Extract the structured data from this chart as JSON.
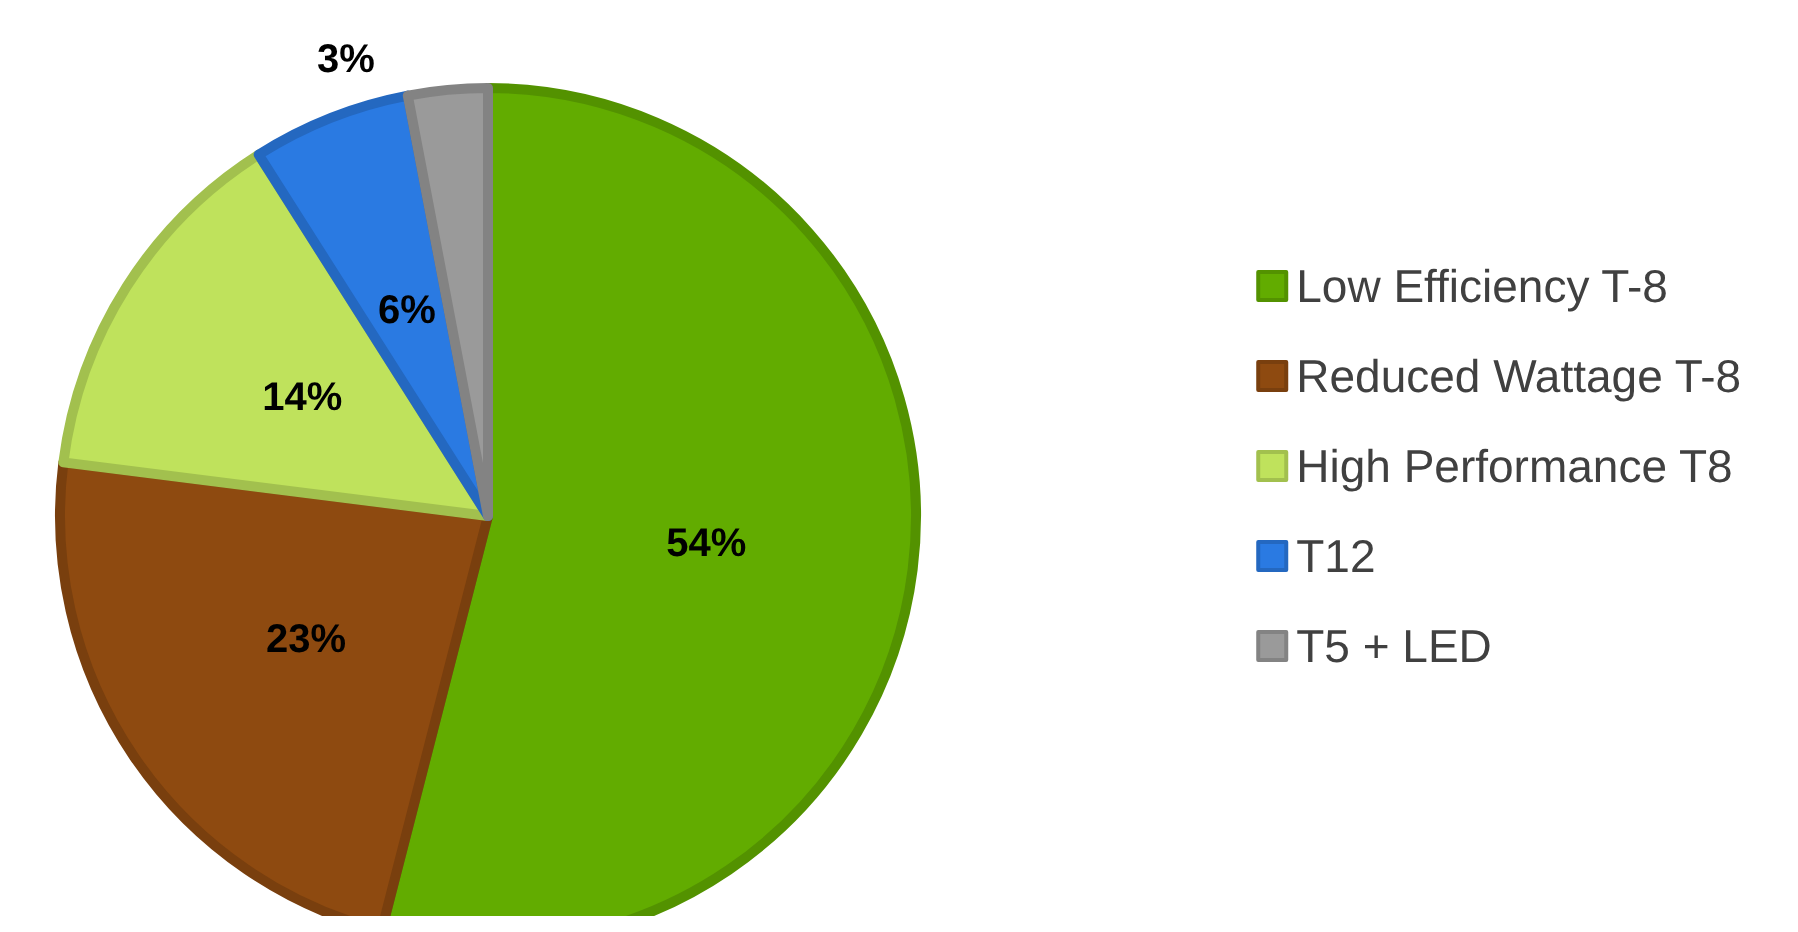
{
  "chart_data": {
    "type": "pie",
    "categories": [
      "Low Efficiency T-8",
      "Reduced Wattage T-8",
      "High Performance T8",
      "T12",
      "T5 + LED"
    ],
    "values": [
      54,
      23,
      14,
      6,
      3
    ],
    "value_labels": [
      "54%",
      "23%",
      "14%",
      "6%",
      "3%"
    ],
    "colors": [
      "#62ac00",
      "#8e4a10",
      "#bfe25c",
      "#2a7ae2",
      "#9a9a9a"
    ],
    "legend": "right"
  }
}
